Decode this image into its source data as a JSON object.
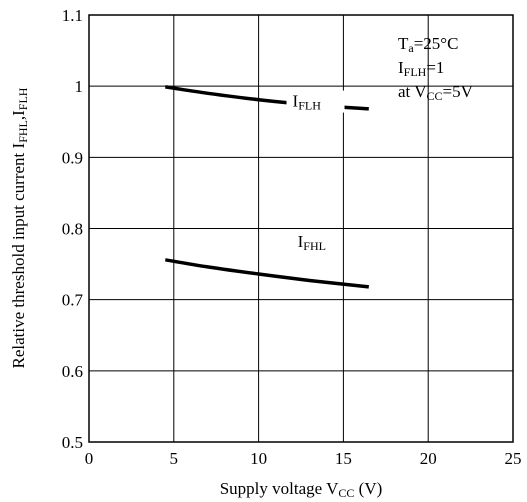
{
  "chart_data": {
    "type": "line",
    "xlabel": {
      "main": "Supply voltage V",
      "sub": "CC",
      "tail": " (V)"
    },
    "ylabel": {
      "main": "Relative threshold input current I",
      "sub1": "FHL",
      "mid": ",I",
      "sub2": "FLH"
    },
    "xlim": [
      0,
      25
    ],
    "ylim": [
      0.5,
      1.1
    ],
    "x_ticks": [
      "0",
      "5",
      "10",
      "15",
      "20",
      "25"
    ],
    "y_ticks": [
      "0.5",
      "0.6",
      "0.7",
      "0.8",
      "0.9",
      "1",
      "1.1"
    ],
    "grid": true,
    "series": [
      {
        "name": {
          "main": "I",
          "sub": "FLH"
        },
        "x": [
          4.5,
          7,
          10,
          13,
          16.5
        ],
        "y": [
          0.999,
          0.99,
          0.981,
          0.974,
          0.968
        ]
      },
      {
        "name": {
          "main": "I",
          "sub": "FHL"
        },
        "x": [
          4.5,
          7,
          10,
          13,
          16.5
        ],
        "y": [
          0.756,
          0.746,
          0.736,
          0.727,
          0.718
        ]
      }
    ],
    "conditions": [
      {
        "main": "T",
        "sub": "a",
        "tail": "=25°C"
      },
      {
        "main": "I",
        "sub": "FLH",
        "tail": "=1"
      },
      {
        "main": "at V",
        "sub": "CC",
        "tail": "=5V"
      }
    ]
  }
}
